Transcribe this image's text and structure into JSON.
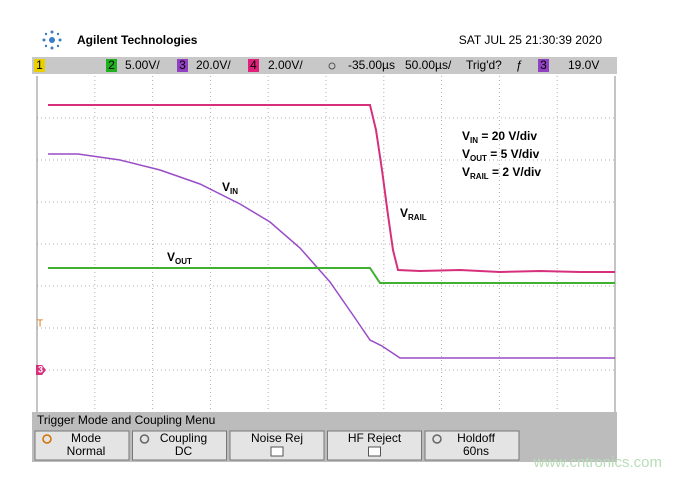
{
  "header": {
    "brand": "Agilent Technologies",
    "datetime": "SAT JUL 25 21:30:39 2020"
  },
  "status_bar": {
    "ch1": "1",
    "ch2": "2",
    "ch2_scale": "5.00V/",
    "ch3": "3",
    "ch3_scale": "20.0V/",
    "ch4": "4",
    "ch4_scale": "2.00V/",
    "delay": "-35.00µs",
    "timebase": "50.00µs/",
    "trigger_state": "Trig'd?",
    "trigger_edge": "ƒ",
    "trigger_source": "3",
    "trigger_level": "19.0V"
  },
  "waveform_labels": {
    "vin": {
      "main": "V",
      "sub": "IN"
    },
    "vrail": {
      "main": "V",
      "sub": "RAIL"
    },
    "vout": {
      "main": "V",
      "sub": "OUT"
    }
  },
  "scale_notes": [
    {
      "main": "V",
      "sub": "IN",
      "rest": " = 20 V/div"
    },
    {
      "main": "V",
      "sub": "OUT",
      "rest": " = 5 V/div"
    },
    {
      "main": "V",
      "sub": "RAIL",
      "rest": " = 2 V/div"
    }
  ],
  "markers": {
    "trigger": "T",
    "ch3": "3"
  },
  "menu": {
    "title": "Trigger Mode and Coupling Menu",
    "buttons": [
      {
        "label": "Mode",
        "value": "Normal"
      },
      {
        "label": "Coupling",
        "value": "DC"
      },
      {
        "label": "Noise Rej"
      },
      {
        "label": "HF Reject"
      },
      {
        "label": "Holdoff",
        "value": "60ns"
      }
    ]
  },
  "watermark": "www.cntronics.com"
}
